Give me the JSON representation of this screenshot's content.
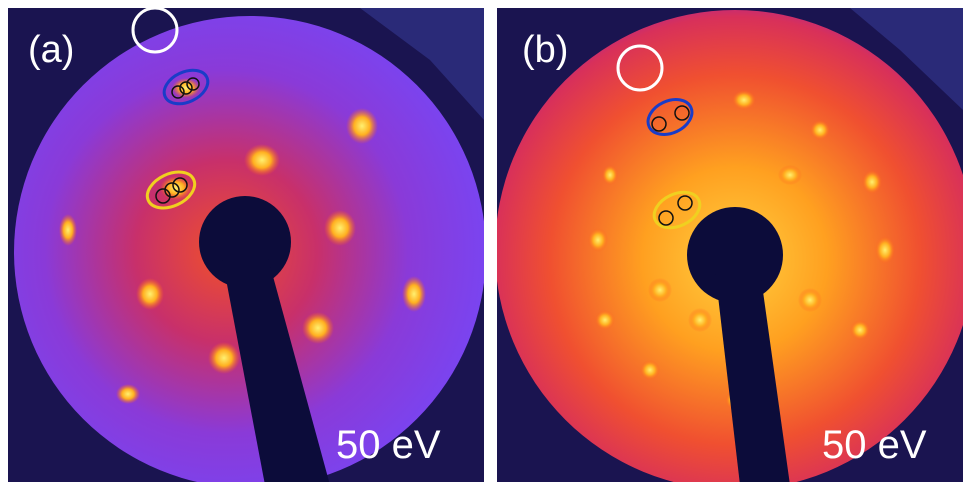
{
  "panels": [
    {
      "label": "(a)",
      "energy": "50 eV"
    },
    {
      "label": "(b)",
      "energy": "50 eV"
    }
  ]
}
